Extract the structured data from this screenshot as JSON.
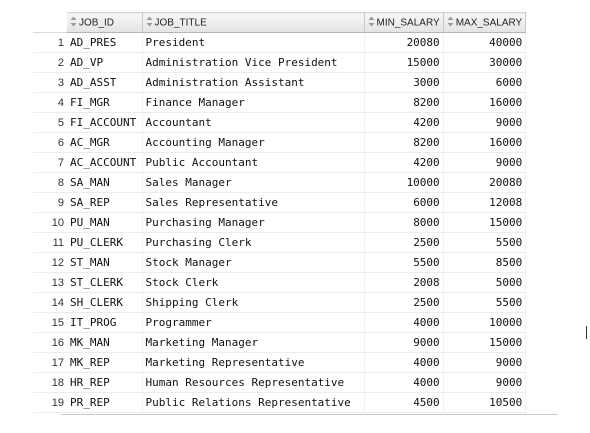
{
  "columns": {
    "job_id": "JOB_ID",
    "job_title": "JOB_TITLE",
    "min_salary": "MIN_SALARY",
    "max_salary": "MAX_SALARY"
  },
  "rows": [
    {
      "n": "1",
      "job_id": "AD_PRES",
      "job_title": "President",
      "min_salary": "20080",
      "max_salary": "40000"
    },
    {
      "n": "2",
      "job_id": "AD_VP",
      "job_title": "Administration Vice President",
      "min_salary": "15000",
      "max_salary": "30000"
    },
    {
      "n": "3",
      "job_id": "AD_ASST",
      "job_title": "Administration Assistant",
      "min_salary": "3000",
      "max_salary": "6000"
    },
    {
      "n": "4",
      "job_id": "FI_MGR",
      "job_title": "Finance Manager",
      "min_salary": "8200",
      "max_salary": "16000"
    },
    {
      "n": "5",
      "job_id": "FI_ACCOUNT",
      "job_title": "Accountant",
      "min_salary": "4200",
      "max_salary": "9000"
    },
    {
      "n": "6",
      "job_id": "AC_MGR",
      "job_title": "Accounting Manager",
      "min_salary": "8200",
      "max_salary": "16000"
    },
    {
      "n": "7",
      "job_id": "AC_ACCOUNT",
      "job_title": "Public Accountant",
      "min_salary": "4200",
      "max_salary": "9000"
    },
    {
      "n": "8",
      "job_id": "SA_MAN",
      "job_title": "Sales Manager",
      "min_salary": "10000",
      "max_salary": "20080"
    },
    {
      "n": "9",
      "job_id": "SA_REP",
      "job_title": "Sales Representative",
      "min_salary": "6000",
      "max_salary": "12008"
    },
    {
      "n": "10",
      "job_id": "PU_MAN",
      "job_title": "Purchasing Manager",
      "min_salary": "8000",
      "max_salary": "15000"
    },
    {
      "n": "11",
      "job_id": "PU_CLERK",
      "job_title": "Purchasing Clerk",
      "min_salary": "2500",
      "max_salary": "5500"
    },
    {
      "n": "12",
      "job_id": "ST_MAN",
      "job_title": "Stock Manager",
      "min_salary": "5500",
      "max_salary": "8500"
    },
    {
      "n": "13",
      "job_id": "ST_CLERK",
      "job_title": "Stock Clerk",
      "min_salary": "2008",
      "max_salary": "5000"
    },
    {
      "n": "14",
      "job_id": "SH_CLERK",
      "job_title": "Shipping Clerk",
      "min_salary": "2500",
      "max_salary": "5500"
    },
    {
      "n": "15",
      "job_id": "IT_PROG",
      "job_title": "Programmer",
      "min_salary": "4000",
      "max_salary": "10000"
    },
    {
      "n": "16",
      "job_id": "MK_MAN",
      "job_title": "Marketing Manager",
      "min_salary": "9000",
      "max_salary": "15000"
    },
    {
      "n": "17",
      "job_id": "MK_REP",
      "job_title": "Marketing Representative",
      "min_salary": "4000",
      "max_salary": "9000"
    },
    {
      "n": "18",
      "job_id": "HR_REP",
      "job_title": "Human Resources Representative",
      "min_salary": "4000",
      "max_salary": "9000"
    },
    {
      "n": "19",
      "job_id": "PR_REP",
      "job_title": "Public Relations Representative",
      "min_salary": "4500",
      "max_salary": "10500"
    }
  ],
  "icons": {
    "sort": "sort-updown-icon"
  }
}
